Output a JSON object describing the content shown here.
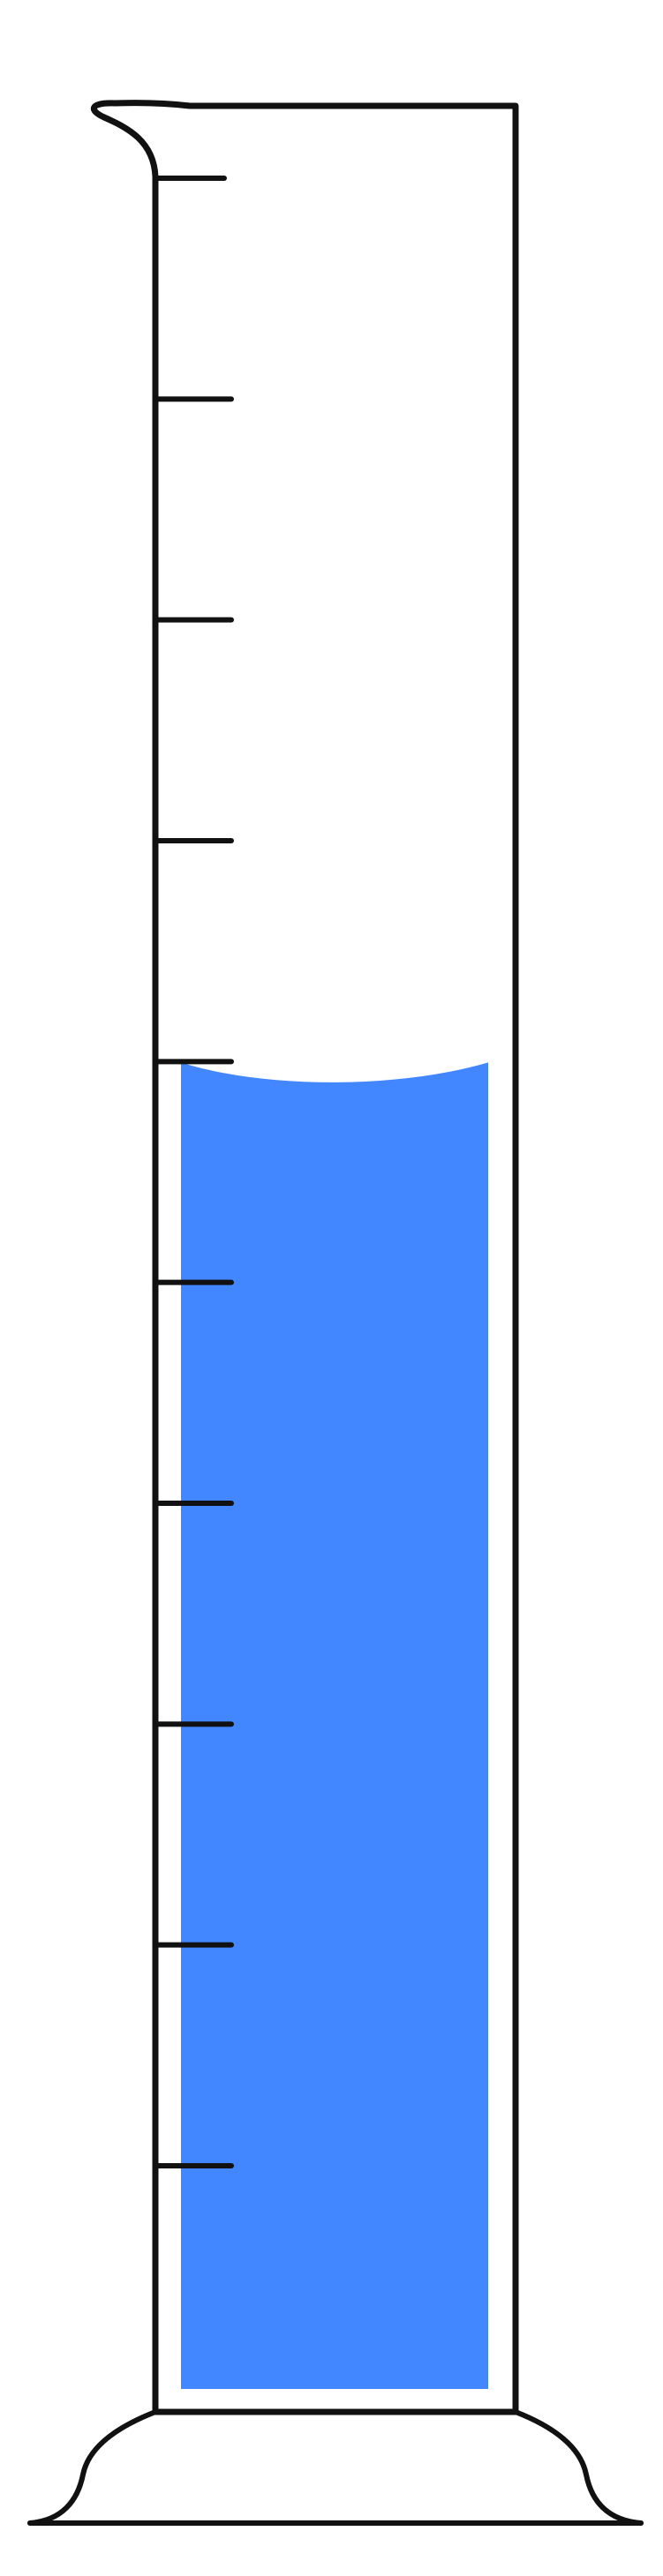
{
  "figure": {
    "subject": "graduated-cylinder",
    "tick_count": 10,
    "fill_fraction": 0.6,
    "colors": {
      "liquid": "#4287FF",
      "outline": "#111111",
      "background": "#FFFFFF"
    }
  }
}
